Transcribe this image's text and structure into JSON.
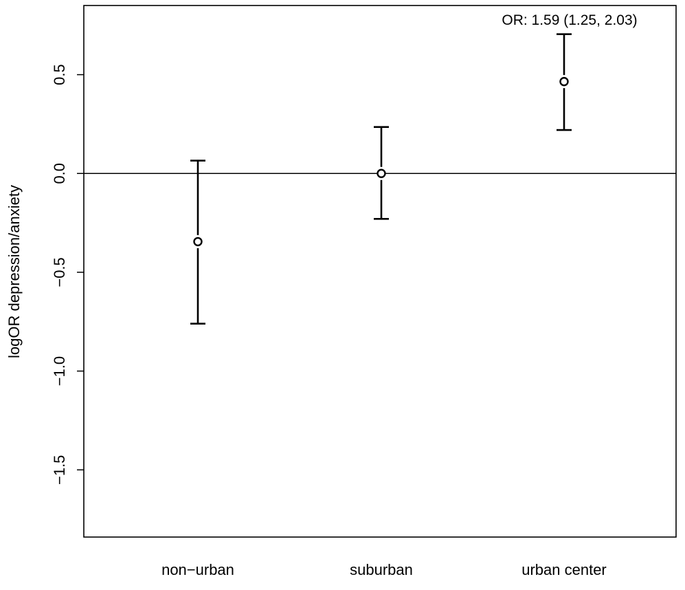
{
  "chart_data": {
    "type": "scatter",
    "title": "",
    "xlabel": "",
    "ylabel": "logOR depression/anxiety",
    "categories": [
      "non−urban",
      "suburban",
      "urban center"
    ],
    "points": [
      {
        "category": "non−urban",
        "estimate": -0.345,
        "lower": -0.76,
        "upper": 0.065
      },
      {
        "category": "suburban",
        "estimate": 0.0,
        "lower": -0.23,
        "upper": 0.235
      },
      {
        "category": "urban center",
        "estimate": 0.465,
        "lower": 0.22,
        "upper": 0.705
      }
    ],
    "yticks": [
      -1.5,
      -1.0,
      -0.5,
      0.0,
      0.5
    ],
    "ytick_labels": [
      "−1.5",
      "−1.0",
      "−0.5",
      "0.0",
      "0.5"
    ],
    "ylim": [
      -1.84,
      0.85
    ],
    "reference_line": 0,
    "annotation": "OR: 1.59 (1.25, 2.03)",
    "grid": false,
    "legend": "none"
  }
}
